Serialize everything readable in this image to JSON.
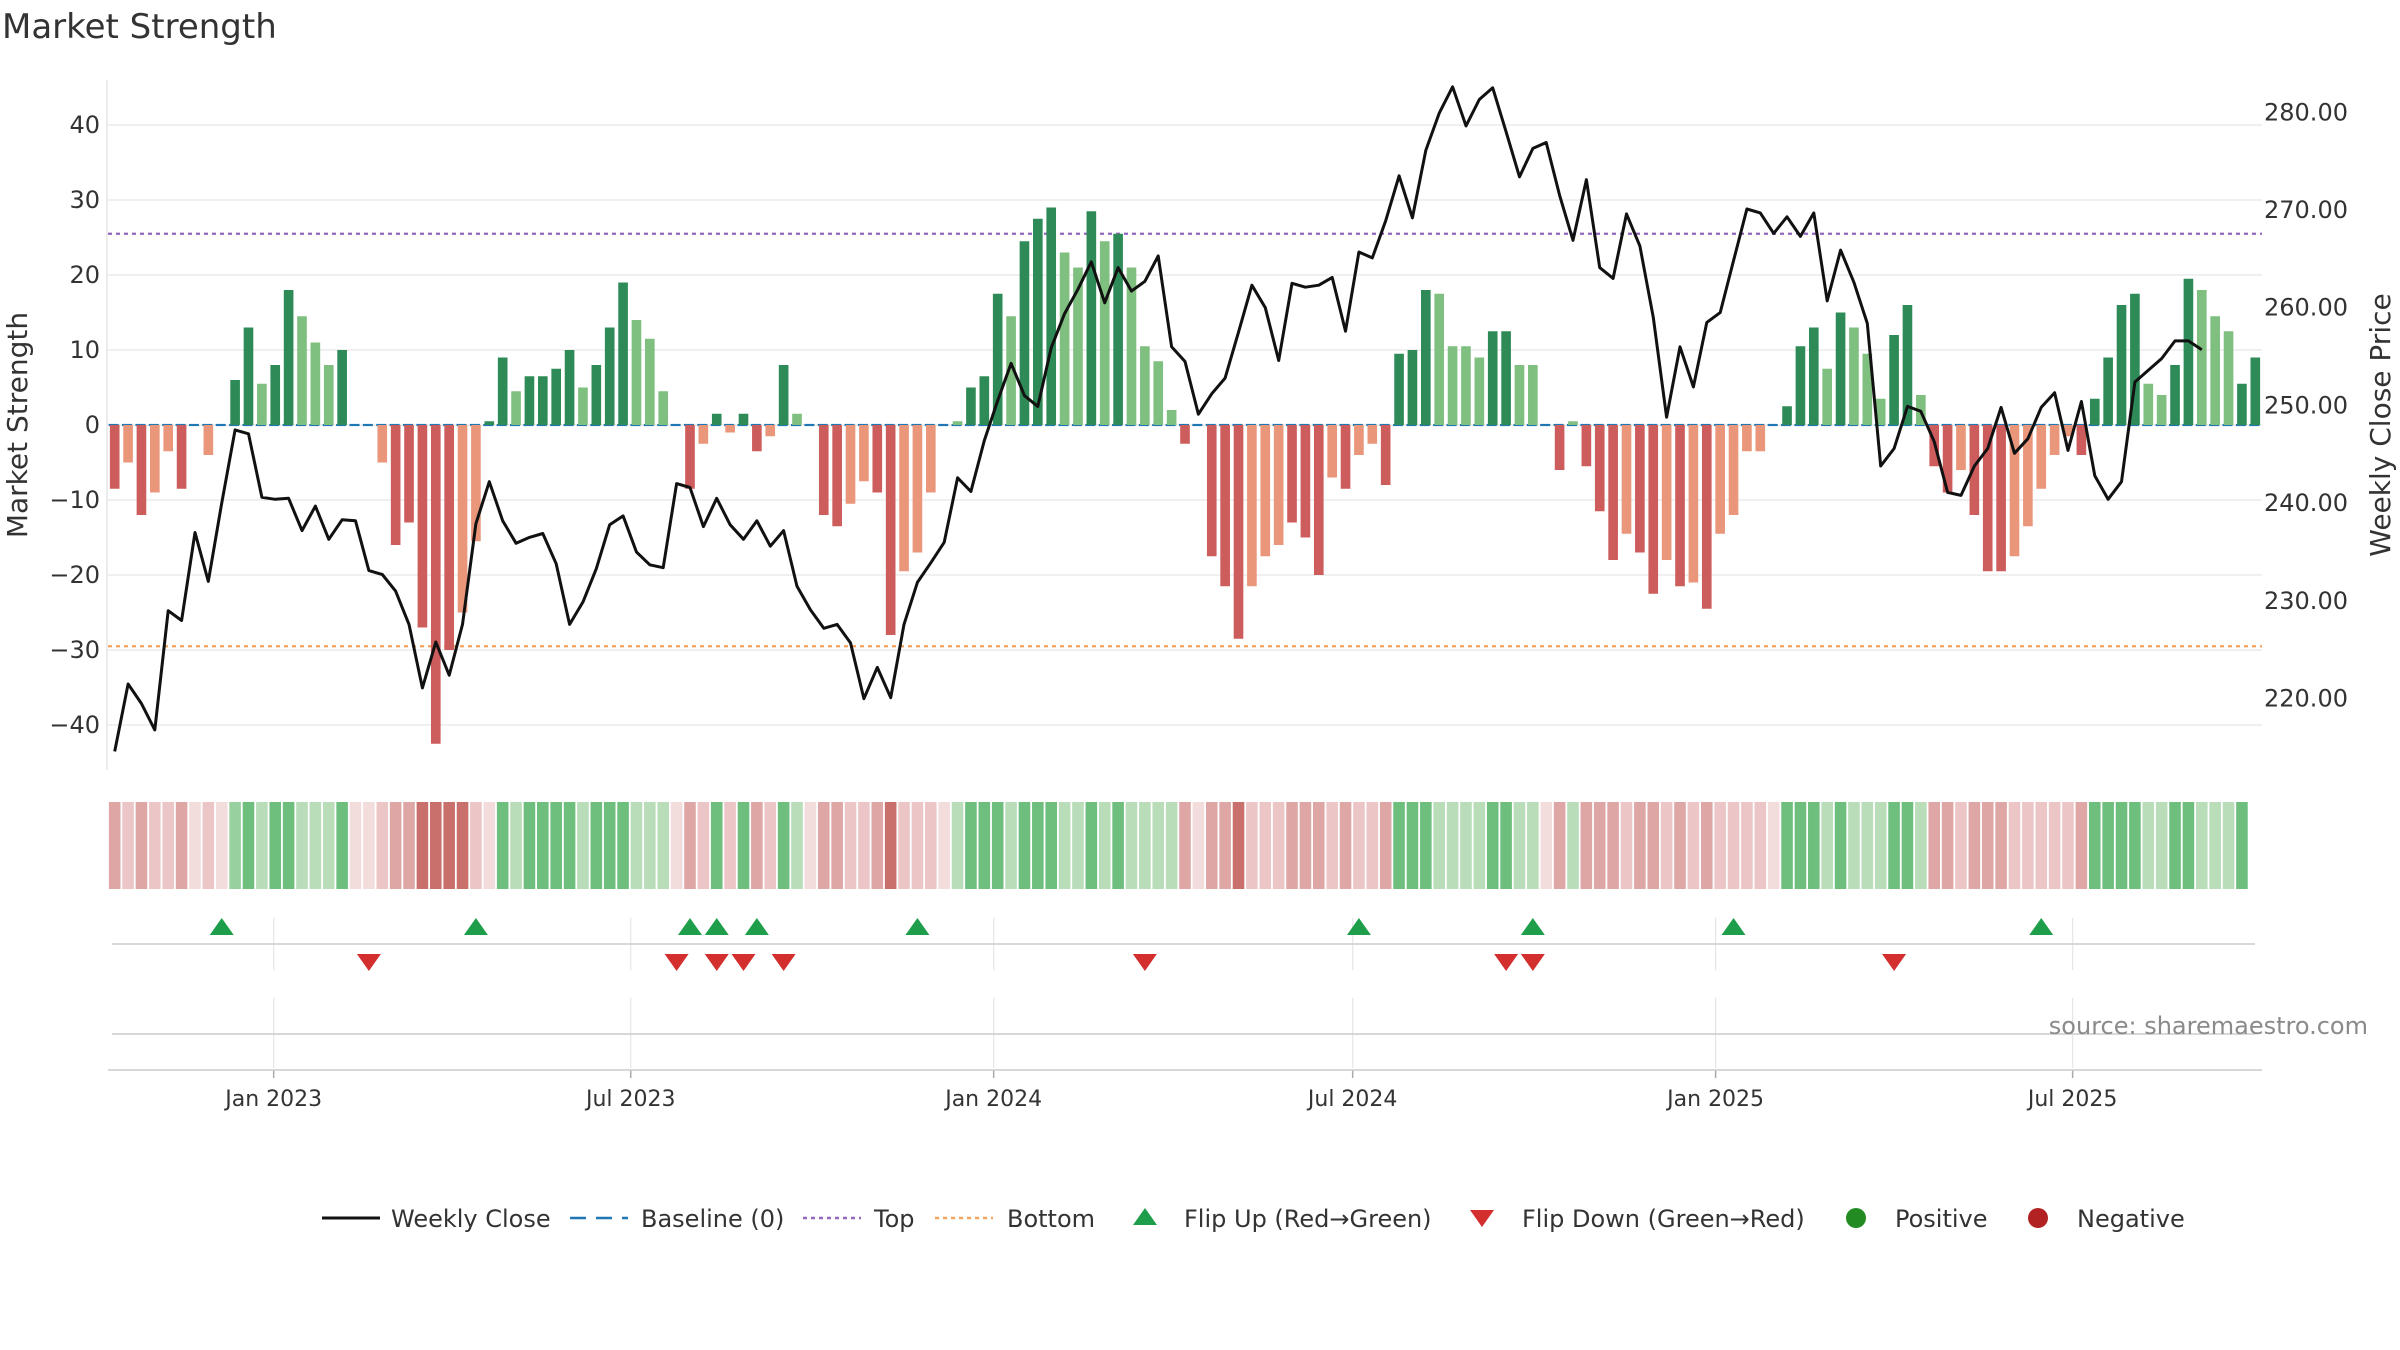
{
  "chart_data": {
    "type": "bar",
    "title": "Market Strength",
    "ylabel_left": "Market Strength",
    "ylabel_right": "Weekly Close Price",
    "source": "source: sharemaestro.com",
    "ylim_left": [
      -46,
      46
    ],
    "yticks_left": [
      40,
      30,
      20,
      10,
      0,
      -10,
      -20,
      -30,
      -40
    ],
    "yticks_left_labels": [
      "40",
      "30",
      "20",
      "10",
      "0",
      "−10",
      "−20",
      "−30",
      "−40"
    ],
    "ylim_right": [
      212.7,
      283.3
    ],
    "yticks_right": [
      280,
      270,
      260,
      250,
      240,
      230,
      220
    ],
    "yticks_right_labels": [
      "280.00",
      "270.00",
      "260.00",
      "250.00",
      "240.00",
      "230.00",
      "220.00"
    ],
    "top_level": 25.5,
    "bottom_level": -29.5,
    "baseline": 0,
    "week_start": "2022-10-09",
    "x_range": [
      "2022-10-09",
      "2025-10-05"
    ],
    "date_ticks": [
      {
        "date": "2023-01-01",
        "label": "Jan 2023"
      },
      {
        "date": "2023-07-01",
        "label": "Jul 2023"
      },
      {
        "date": "2024-01-01",
        "label": "Jan 2024"
      },
      {
        "date": "2024-07-01",
        "label": "Jul 2024"
      },
      {
        "date": "2025-01-01",
        "label": "Jan 2025"
      },
      {
        "date": "2025-07-01",
        "label": "Jul 2025"
      }
    ],
    "strength": [
      -8.5,
      -5,
      -12,
      -9,
      -3.5,
      -8.5,
      0,
      -4,
      0,
      6,
      13,
      5.5,
      8,
      18,
      14.5,
      11,
      8,
      10,
      0,
      0,
      -5,
      -16,
      -13,
      -27,
      -42.5,
      -30,
      -25,
      -15.5,
      0.5,
      9,
      4.5,
      6.5,
      6.5,
      7.5,
      10,
      5,
      8,
      13,
      19,
      14,
      11.5,
      4.5,
      0,
      -8.5,
      -2.5,
      1.5,
      -1,
      1.5,
      -3.5,
      -1.5,
      8,
      1.5,
      0,
      -12,
      -13.5,
      -10.5,
      -7.5,
      -9,
      -28,
      -19.5,
      -17,
      -9,
      0,
      0.5,
      5,
      6.5,
      17.5,
      14.5,
      24.5,
      27.5,
      29,
      23,
      21,
      28.5,
      24.5,
      25.5,
      21,
      10.5,
      8.5,
      2,
      -2.5,
      0,
      -17.5,
      -21.5,
      -28.5,
      -21.5,
      -17.5,
      -16,
      -13,
      -15,
      -20,
      -7,
      -8.5,
      -4,
      -2.5,
      -8,
      9.5,
      10,
      18,
      17.5,
      10.5,
      10.5,
      9,
      12.5,
      12.5,
      8,
      8,
      0,
      -6,
      0.5,
      -5.5,
      -11.5,
      -18,
      -14.5,
      -17,
      -22.5,
      -18,
      -21.5,
      -21,
      -24.5,
      -14.5,
      -12,
      -3.5,
      -3.5,
      0,
      2.5,
      10.5,
      13,
      7.5,
      15,
      13,
      9.5,
      3.5,
      12,
      16,
      4,
      -5.5,
      -9,
      -6,
      -12,
      -19.5,
      -19.5,
      -17.5,
      -13.5,
      -8.5,
      -4,
      -1.5,
      -4,
      3.5,
      9,
      16,
      17.5,
      5.5,
      4,
      8,
      19.5,
      18,
      14.5,
      12.5,
      5.5,
      9
    ],
    "shade_classes": [
      "ls",
      "lsf",
      "ls",
      "lsf",
      "lsf",
      "ls",
      "n",
      "lsf",
      "n",
      "l",
      "s",
      "lf",
      "s",
      "s",
      "lf",
      "lf",
      "lf",
      "s",
      "n",
      "n",
      "lsf",
      "ls",
      "ls",
      "ls",
      "ls",
      "ls",
      "lsf",
      "lsf",
      "n",
      "s",
      "lf",
      "s",
      "s",
      "s",
      "s",
      "lf",
      "s",
      "s",
      "s",
      "lf",
      "lf",
      "lf",
      "n",
      "ls",
      "lsf",
      "s",
      "lsf",
      "s",
      "ls",
      "lsf",
      "s",
      "lf",
      "n",
      "ls",
      "ls",
      "lsf",
      "lsf",
      "ls",
      "ls",
      "lsf",
      "lsf",
      "lsf",
      "n",
      "lf",
      "s",
      "s",
      "s",
      "lf",
      "s",
      "s",
      "s",
      "lf",
      "lf",
      "s",
      "lf",
      "s",
      "lf",
      "lf",
      "lf",
      "lf",
      "ls",
      "n",
      "ls",
      "ls",
      "ls",
      "lsf",
      "lsf",
      "lsf",
      "ls",
      "ls",
      "ls",
      "lsf",
      "ls",
      "lsf",
      "lsf",
      "ls",
      "s",
      "s",
      "s",
      "lf",
      "lf",
      "lf",
      "lf",
      "s",
      "s",
      "lf",
      "lf",
      "n",
      "ls",
      "lf",
      "ls",
      "ls",
      "ls",
      "lsf",
      "ls",
      "ls",
      "lsf",
      "ls",
      "lsf",
      "ls",
      "lsf",
      "lsf",
      "lsf",
      "lsf",
      "n",
      "s",
      "s",
      "s",
      "lf",
      "s",
      "lf",
      "lf",
      "lf",
      "s",
      "s",
      "lf",
      "ls",
      "ls",
      "lsf",
      "ls",
      "ls",
      "ls",
      "lsf",
      "lsf",
      "lsf",
      "lsf",
      "lsf",
      "ls",
      "s",
      "s",
      "s",
      "s",
      "lf",
      "lf",
      "s",
      "s",
      "lf",
      "lf",
      "lf",
      "s"
    ],
    "price": [
      214.6,
      221.5,
      219.5,
      216.8,
      229,
      228,
      237,
      232,
      240,
      247.5,
      247.1,
      240.6,
      240.4,
      240.5,
      237.2,
      239.7,
      236.3,
      238.3,
      238.2,
      233.1,
      232.7,
      231,
      227.6,
      221.1,
      225.8,
      222.4,
      227.6,
      237.9,
      242.2,
      238.2,
      235.9,
      236.5,
      236.9,
      233.8,
      227.6,
      229.9,
      233.3,
      237.8,
      238.7,
      235,
      233.7,
      233.4,
      242,
      241.6,
      237.6,
      240.5,
      237.8,
      236.3,
      238.2,
      235.6,
      237.2,
      231.5,
      229.1,
      227.2,
      227.6,
      225.7,
      220,
      223.2,
      220.1,
      227.6,
      231.9,
      233.9,
      236,
      242.6,
      241.2,
      246.4,
      250.5,
      254.3,
      251,
      249.9,
      255.9,
      259.4,
      261.9,
      264.7,
      260.5,
      264.1,
      261.7,
      262.7,
      265.3,
      256,
      254.5,
      249.1,
      251.2,
      252.8,
      257.5,
      262.3,
      260,
      254.6,
      262.5,
      262.1,
      262.3,
      263.1,
      257.6,
      265.7,
      265.1,
      268.9,
      273.5,
      269.2,
      276.1,
      279.9,
      282.6,
      278.6,
      281.3,
      282.5,
      278,
      273.4,
      276.3,
      276.9,
      271.5,
      266.9,
      273.1,
      264.1,
      263,
      269.6,
      266.3,
      259,
      248.8,
      256,
      251.9,
      258.5,
      259.5,
      264.8,
      270.1,
      269.7,
      267.6,
      269.3,
      267.3,
      269.7,
      260.7,
      265.9,
      262.6,
      258.4,
      243.8,
      245.6,
      249.9,
      249.4,
      246.3,
      241.1,
      240.8,
      243.8,
      245.6,
      249.8,
      245.1,
      246.6,
      249.8,
      251.3,
      245.4,
      250.4,
      242.8,
      240.4,
      242.2,
      252.4,
      253.6,
      254.8,
      256.6,
      256.6,
      255.7
    ],
    "flip_up_idx": [
      8,
      27,
      43,
      45,
      48,
      60,
      93,
      106,
      121,
      144
    ],
    "flip_down_idx": [
      19,
      42,
      45,
      47,
      50,
      77,
      104,
      106,
      133
    ],
    "legend": [
      {
        "key": "close",
        "label": "Weekly Close"
      },
      {
        "key": "baseline",
        "label": "Baseline (0)"
      },
      {
        "key": "top",
        "label": "Top"
      },
      {
        "key": "bottom",
        "label": "Bottom"
      },
      {
        "key": "flipup",
        "label": "Flip Up (Red→Green)"
      },
      {
        "key": "flipdown",
        "label": "Flip Down (Green→Red)"
      },
      {
        "key": "positive",
        "label": "Positive"
      },
      {
        "key": "negative",
        "label": "Negative"
      }
    ]
  },
  "colors": {
    "pos_strong": "#2e8b57",
    "pos_weak": "#7fbf7f",
    "neg_strong": "#cd5c5c",
    "neg_weak": "#e9967a",
    "baseline": "#1f77b4",
    "top_line": "#9467bd",
    "bottom_line": "#f4a460",
    "close_line": "#111111",
    "flip_up": "#1e9e4a",
    "flip_down": "#d32f2f",
    "positive_dot": "#228b22",
    "negative_dot": "#b22222",
    "grid": "#e6e6e6",
    "axis": "#cccccc",
    "shade_s": "#6ebf7e",
    "shade_l": "#98d19f",
    "shade_lf": "#b8ddb8",
    "shade_n": "#f3dcdc",
    "shade_lsf": "#ecc6c6",
    "shade_ls": "#dfa6a6",
    "shade_ss": "#c9706c"
  }
}
